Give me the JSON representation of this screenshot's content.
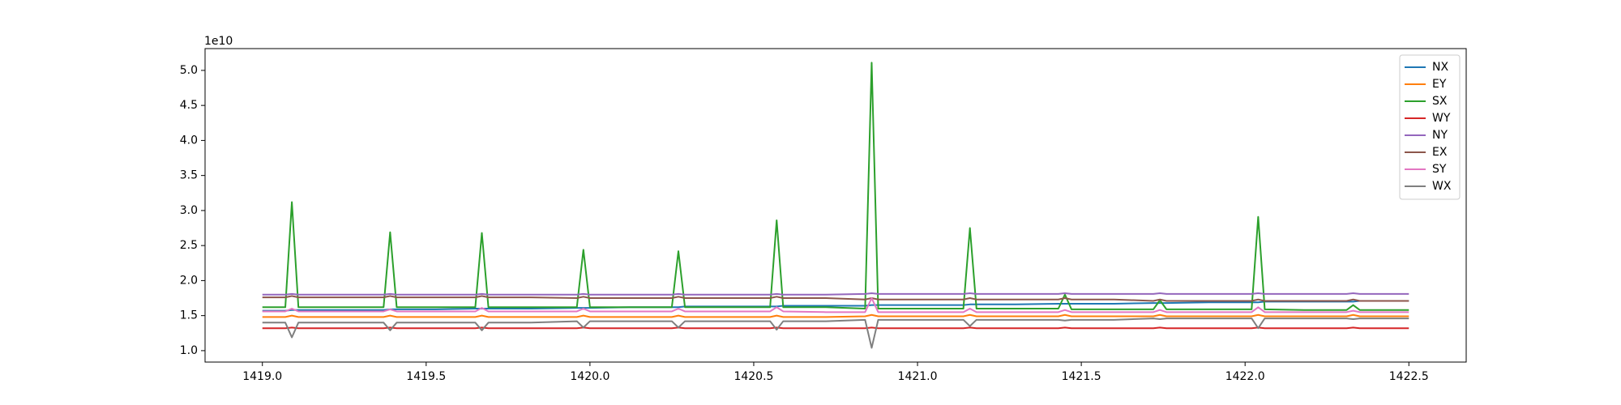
{
  "chart_data": {
    "type": "line",
    "y_offset_label": "1e10",
    "x": [
      1419.0,
      1419.07,
      1419.09,
      1419.11,
      1419.25,
      1419.37,
      1419.39,
      1419.41,
      1419.53,
      1419.65,
      1419.67,
      1419.69,
      1419.82,
      1419.96,
      1419.98,
      1420.0,
      1420.12,
      1420.25,
      1420.27,
      1420.29,
      1420.42,
      1420.55,
      1420.57,
      1420.59,
      1420.72,
      1420.84,
      1420.86,
      1420.88,
      1421.01,
      1421.14,
      1421.16,
      1421.18,
      1421.3,
      1421.43,
      1421.45,
      1421.47,
      1421.6,
      1421.72,
      1421.74,
      1421.76,
      1421.89,
      1422.02,
      1422.04,
      1422.06,
      1422.18,
      1422.31,
      1422.33,
      1422.35,
      1422.5
    ],
    "series": [
      {
        "name": "NX",
        "color": "#1f77b4",
        "values": [
          1.57,
          1.57,
          1.58,
          1.58,
          1.58,
          1.58,
          1.59,
          1.59,
          1.59,
          1.6,
          1.6,
          1.6,
          1.6,
          1.61,
          1.61,
          1.61,
          1.62,
          1.62,
          1.62,
          1.63,
          1.63,
          1.63,
          1.63,
          1.64,
          1.64,
          1.64,
          1.65,
          1.65,
          1.65,
          1.65,
          1.66,
          1.66,
          1.66,
          1.67,
          1.67,
          1.67,
          1.67,
          1.68,
          1.68,
          1.68,
          1.69,
          1.69,
          1.69,
          1.7,
          1.7,
          1.7,
          1.7,
          1.71,
          1.71
        ]
      },
      {
        "name": "EY",
        "color": "#ff7f0e",
        "values": [
          1.48,
          1.48,
          1.5,
          1.48,
          1.48,
          1.48,
          1.5,
          1.48,
          1.48,
          1.48,
          1.5,
          1.48,
          1.48,
          1.48,
          1.5,
          1.48,
          1.48,
          1.48,
          1.5,
          1.48,
          1.48,
          1.48,
          1.5,
          1.48,
          1.48,
          1.49,
          1.51,
          1.49,
          1.49,
          1.49,
          1.51,
          1.49,
          1.49,
          1.49,
          1.51,
          1.49,
          1.49,
          1.49,
          1.51,
          1.49,
          1.49,
          1.49,
          1.51,
          1.49,
          1.49,
          1.49,
          1.51,
          1.49,
          1.49
        ]
      },
      {
        "name": "SX",
        "color": "#2ca02c",
        "values": [
          1.62,
          1.62,
          3.12,
          1.62,
          1.62,
          1.62,
          2.69,
          1.62,
          1.62,
          1.62,
          2.68,
          1.62,
          1.62,
          1.62,
          2.44,
          1.62,
          1.62,
          1.62,
          2.42,
          1.62,
          1.62,
          1.62,
          2.86,
          1.62,
          1.62,
          1.6,
          5.11,
          1.6,
          1.6,
          1.6,
          2.75,
          1.6,
          1.6,
          1.6,
          1.8,
          1.59,
          1.59,
          1.59,
          1.72,
          1.59,
          1.59,
          1.59,
          2.91,
          1.59,
          1.58,
          1.58,
          1.65,
          1.58,
          1.58
        ]
      },
      {
        "name": "WY",
        "color": "#d62728",
        "values": [
          1.32,
          1.32,
          1.33,
          1.32,
          1.32,
          1.32,
          1.33,
          1.32,
          1.32,
          1.32,
          1.33,
          1.32,
          1.32,
          1.32,
          1.33,
          1.32,
          1.32,
          1.32,
          1.33,
          1.32,
          1.32,
          1.32,
          1.33,
          1.32,
          1.32,
          1.32,
          1.33,
          1.32,
          1.32,
          1.32,
          1.33,
          1.32,
          1.32,
          1.32,
          1.33,
          1.32,
          1.32,
          1.32,
          1.33,
          1.32,
          1.32,
          1.32,
          1.33,
          1.32,
          1.32,
          1.32,
          1.33,
          1.32,
          1.32
        ]
      },
      {
        "name": "NY",
        "color": "#9467bd",
        "values": [
          1.8,
          1.8,
          1.81,
          1.8,
          1.8,
          1.8,
          1.81,
          1.8,
          1.8,
          1.8,
          1.81,
          1.8,
          1.8,
          1.8,
          1.81,
          1.8,
          1.8,
          1.8,
          1.81,
          1.8,
          1.8,
          1.8,
          1.81,
          1.8,
          1.8,
          1.81,
          1.82,
          1.81,
          1.81,
          1.81,
          1.82,
          1.81,
          1.81,
          1.81,
          1.82,
          1.81,
          1.81,
          1.81,
          1.82,
          1.81,
          1.81,
          1.81,
          1.82,
          1.81,
          1.81,
          1.81,
          1.82,
          1.81,
          1.81
        ]
      },
      {
        "name": "EX",
        "color": "#8c564b",
        "values": [
          1.76,
          1.76,
          1.78,
          1.76,
          1.76,
          1.76,
          1.78,
          1.76,
          1.76,
          1.76,
          1.78,
          1.76,
          1.76,
          1.75,
          1.77,
          1.75,
          1.75,
          1.75,
          1.77,
          1.75,
          1.75,
          1.75,
          1.77,
          1.75,
          1.75,
          1.73,
          1.75,
          1.73,
          1.73,
          1.73,
          1.75,
          1.73,
          1.73,
          1.73,
          1.75,
          1.73,
          1.73,
          1.71,
          1.73,
          1.71,
          1.71,
          1.71,
          1.73,
          1.71,
          1.71,
          1.71,
          1.73,
          1.71,
          1.71
        ]
      },
      {
        "name": "SY",
        "color": "#e377c2",
        "values": [
          1.56,
          1.56,
          1.6,
          1.56,
          1.56,
          1.56,
          1.59,
          1.56,
          1.56,
          1.56,
          1.61,
          1.56,
          1.56,
          1.56,
          1.6,
          1.56,
          1.56,
          1.56,
          1.6,
          1.56,
          1.56,
          1.56,
          1.62,
          1.56,
          1.55,
          1.55,
          1.75,
          1.55,
          1.55,
          1.55,
          1.6,
          1.55,
          1.55,
          1.55,
          1.58,
          1.55,
          1.55,
          1.55,
          1.58,
          1.55,
          1.55,
          1.55,
          1.62,
          1.55,
          1.55,
          1.55,
          1.57,
          1.55,
          1.55
        ]
      },
      {
        "name": "WX",
        "color": "#7f7f7f",
        "values": [
          1.4,
          1.4,
          1.19,
          1.4,
          1.4,
          1.4,
          1.29,
          1.4,
          1.4,
          1.4,
          1.29,
          1.4,
          1.4,
          1.42,
          1.33,
          1.42,
          1.42,
          1.42,
          1.33,
          1.42,
          1.42,
          1.42,
          1.3,
          1.42,
          1.42,
          1.44,
          1.04,
          1.44,
          1.44,
          1.44,
          1.35,
          1.44,
          1.44,
          1.44,
          1.43,
          1.44,
          1.44,
          1.46,
          1.45,
          1.46,
          1.46,
          1.46,
          1.32,
          1.46,
          1.46,
          1.46,
          1.45,
          1.46,
          1.46
        ]
      }
    ],
    "xlim": [
      1418.825,
      1422.675
    ],
    "ylim": [
      0.837,
      5.311
    ],
    "xticks": [
      {
        "value": 1419,
        "label": "1419.0"
      },
      1419.5,
      {
        "value": 1420,
        "label": "1420.0"
      },
      1420.5,
      {
        "value": 1421,
        "label": "1421.0"
      },
      1421.5,
      {
        "value": 1422,
        "label": "1422.0"
      },
      1422.5
    ],
    "yticks": [
      {
        "value": 1,
        "label": "1.0"
      },
      1.5,
      {
        "value": 2,
        "label": "2.0"
      },
      2.5,
      {
        "value": 3,
        "label": "3.0"
      },
      3.5,
      {
        "value": 4,
        "label": "4.0"
      },
      4.5,
      {
        "value": 5,
        "label": "5.0"
      }
    ],
    "grid": false,
    "legend": "upper right"
  }
}
